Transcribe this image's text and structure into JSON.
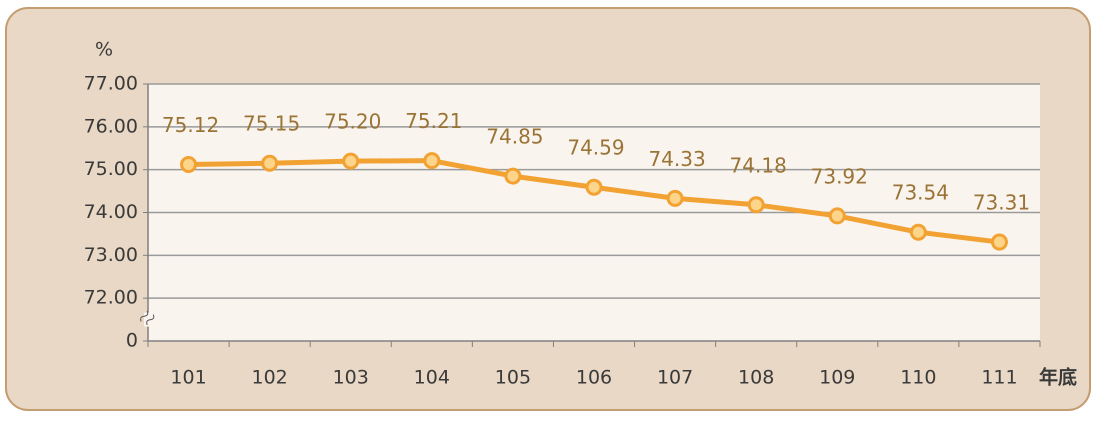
{
  "chart_data": {
    "type": "line",
    "y_label": "%",
    "x_label": "年底",
    "categories": [
      "101",
      "102",
      "103",
      "104",
      "105",
      "106",
      "107",
      "108",
      "109",
      "110",
      "111"
    ],
    "series": [
      {
        "color": "#f2a232",
        "values": [
          75.12,
          75.15,
          75.2,
          75.21,
          74.85,
          74.59,
          74.33,
          74.18,
          73.92,
          73.54,
          73.31
        ],
        "value_labels": [
          "75.12",
          "75.15",
          "75.20",
          "75.21",
          "74.85",
          "74.59",
          "74.33",
          "74.18",
          "73.92",
          "73.54",
          "73.31"
        ]
      }
    ],
    "ylim": [
      0,
      77
    ],
    "yticks": [
      {
        "value": 0,
        "label": "0"
      },
      {
        "value": 72,
        "label": "72.00"
      },
      {
        "value": 73,
        "label": "73.00"
      },
      {
        "value": 74,
        "label": "74.00"
      },
      {
        "value": 75,
        "label": "75.00"
      },
      {
        "value": 76,
        "label": "76.00"
      },
      {
        "value": 77,
        "label": "77.00"
      }
    ],
    "axis_break": true,
    "grid": true
  }
}
